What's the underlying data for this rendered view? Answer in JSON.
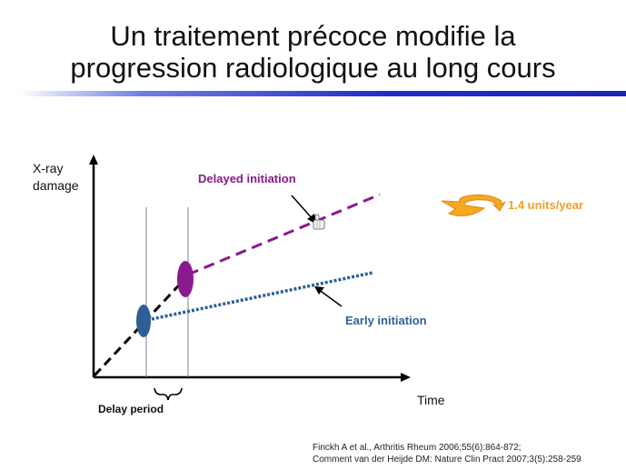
{
  "slide": {
    "title_line1": "Un traitement précoce modifie la",
    "title_line2": "progression radiologique au long cours"
  },
  "diagram": {
    "y_axis_label_line1": "X-ray",
    "y_axis_label_line2": "damage",
    "x_axis_label": "Time",
    "delayed_label": "Delayed initiation",
    "early_label": "Early initiation",
    "delay_period_label": "Delay period",
    "rate_label": "1.4 units/year",
    "colors": {
      "delayed": "#8a1a8e",
      "early": "#2e5f98",
      "rate": "#f0a020"
    }
  },
  "references": {
    "line1": "Finckh A et al., Arthritis Rheum 2006;55(6):864-872;",
    "line2": "Comment van der Heijde DM: Nature Clin Pract 2007;3(5):258-259"
  }
}
